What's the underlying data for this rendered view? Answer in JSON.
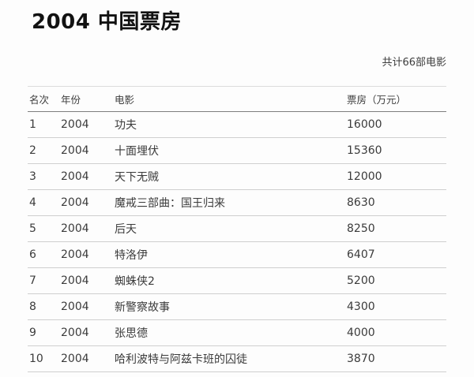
{
  "page": {
    "title": "2004 中国票房",
    "summary": "共计66部电影"
  },
  "table": {
    "headers": [
      "名次",
      "年份",
      "电影",
      "票房（万元）"
    ],
    "rows": [
      {
        "rank": "1",
        "year": "2004",
        "movie": "功夫",
        "box_office": "16000"
      },
      {
        "rank": "2",
        "year": "2004",
        "movie": "十面埋伏",
        "box_office": "15360"
      },
      {
        "rank": "3",
        "year": "2004",
        "movie": "天下无贼",
        "box_office": "12000"
      },
      {
        "rank": "4",
        "year": "2004",
        "movie": "魔戒三部曲：国王归来",
        "box_office": "8630"
      },
      {
        "rank": "5",
        "year": "2004",
        "movie": "后天",
        "box_office": "8250"
      },
      {
        "rank": "6",
        "year": "2004",
        "movie": "特洛伊",
        "box_office": "6407"
      },
      {
        "rank": "7",
        "year": "2004",
        "movie": "蜘蛛侠2",
        "box_office": "5200"
      },
      {
        "rank": "8",
        "year": "2004",
        "movie": "新警察故事",
        "box_office": "4300"
      },
      {
        "rank": "9",
        "year": "2004",
        "movie": "张思德",
        "box_office": "4000"
      },
      {
        "rank": "10",
        "year": "2004",
        "movie": "哈利波特与阿兹卡班的囚徒",
        "box_office": "3870"
      }
    ]
  }
}
